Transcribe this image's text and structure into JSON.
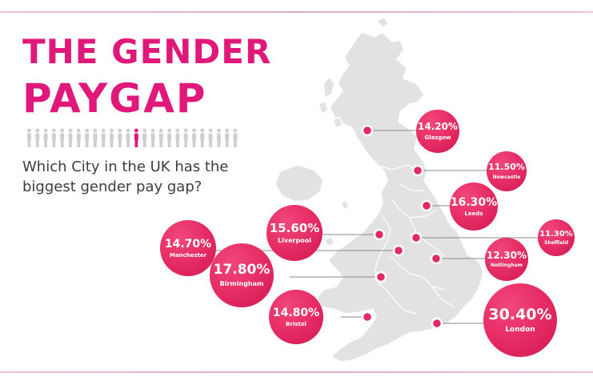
{
  "title_line1": "THE GENDER",
  "title_line2": "PAYGAP",
  "question": "Which City in the UK has the biggest gender pay gap?",
  "colors": {
    "accent": "#e0187a",
    "bubble": "#e42a61",
    "map": "#e2e2e2",
    "text": "#3d3d3d"
  },
  "cities": [
    {
      "name": "Glasgow",
      "value": "14.20%"
    },
    {
      "name": "Newcastle",
      "value": "11.50%"
    },
    {
      "name": "Leeds",
      "value": "16.30%"
    },
    {
      "name": "Sheffield",
      "value": "11.30%"
    },
    {
      "name": "Nottingham",
      "value": "12.30%"
    },
    {
      "name": "Liverpool",
      "value": "15.60%"
    },
    {
      "name": "Manchester",
      "value": "14.70%"
    },
    {
      "name": "Birmingham",
      "value": "17.80%"
    },
    {
      "name": "Bristol",
      "value": "14.80%"
    },
    {
      "name": "London",
      "value": "30.40%"
    }
  ]
}
